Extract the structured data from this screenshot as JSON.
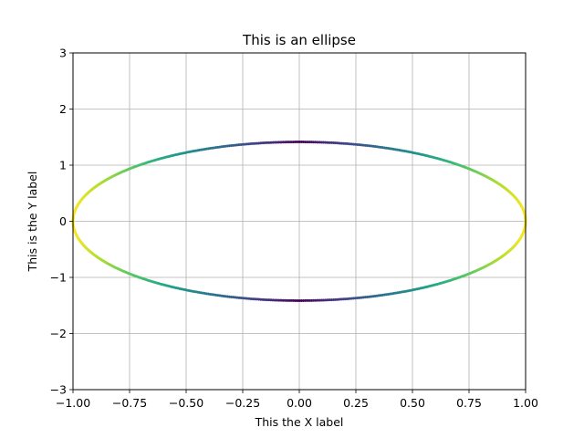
{
  "chart_data": {
    "type": "scatter",
    "title": "This is an ellipse",
    "xlabel": "This the X label",
    "ylabel": "This is the Y label",
    "xlim": [
      -1,
      1
    ],
    "ylim": [
      -3,
      3
    ],
    "grid": true,
    "x_ticks": [
      -1.0,
      -0.75,
      -0.5,
      -0.25,
      0.0,
      0.25,
      0.5,
      0.75,
      1.0
    ],
    "x_tick_labels": [
      "−1.00",
      "−0.75",
      "−0.50",
      "−0.25",
      "0.00",
      "0.25",
      "0.50",
      "0.75",
      "1.00"
    ],
    "y_ticks": [
      -3,
      -2,
      -1,
      0,
      1,
      2,
      3
    ],
    "y_tick_labels": [
      "−3",
      "−2",
      "−1",
      "0",
      "1",
      "2",
      "3"
    ],
    "ellipse": {
      "x_semi_axis": 1.0,
      "y_semi_axis": 1.414,
      "center": [
        0,
        0
      ]
    },
    "colormap": "viridis",
    "color_value": "abs(x)",
    "grid_color": "#b0b0b0"
  }
}
